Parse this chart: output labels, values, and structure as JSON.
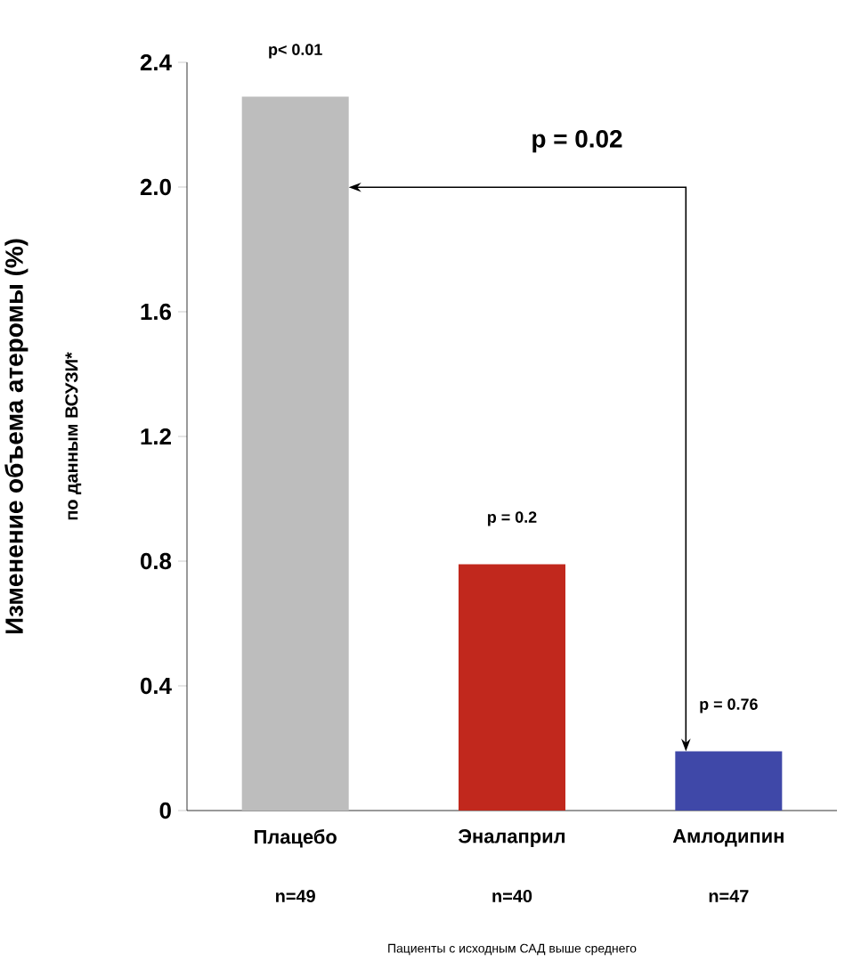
{
  "chart_data": {
    "type": "bar",
    "ylabel": "Изменение объема атеромы (%)",
    "categories": [
      "Плацебо",
      "Эналаприл",
      "Амлодипин"
    ],
    "values": [
      2.29,
      0.79,
      0.19
    ],
    "colors": [
      "#bdbdbd",
      "#c1281d",
      "#3f48a8"
    ],
    "ylim": [
      0,
      2.4
    ],
    "yticks": [
      0,
      0.4,
      0.8,
      1.2,
      1.6,
      {
        "value": 2,
        "label": "2.0"
      },
      2.4
    ],
    "annotations": [
      "по данным ВСУЗИ*",
      {
        "text": "p< 0.01",
        "x": "Плацебо",
        "y": 2.29
      },
      {
        "text": "p = 0.2",
        "x": "Эналаприл",
        "y": 0.79
      },
      {
        "text": "p = 0.76",
        "x": "Амлодипин",
        "y": 0.19
      },
      "p = 0.02",
      "n=49",
      "n=40",
      "n=47",
      "Пациенты с исходным САД выше среднего"
    ]
  }
}
